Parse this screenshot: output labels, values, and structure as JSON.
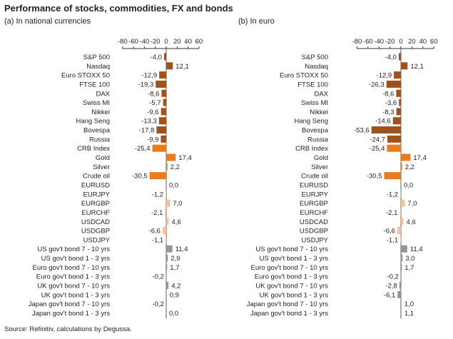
{
  "title": "Performance of stocks, commodities, FX and bonds",
  "source": "Source: Refinitiv, calculations by Degussa.",
  "colors": {
    "stocks": "#a0521b",
    "commodities": "#e87d1e",
    "fx": "#f5c09a",
    "bonds": "#939598",
    "axis": "#333333"
  },
  "chart_data": [
    {
      "type": "bar",
      "orientation": "horizontal",
      "subtitle": "(a) In national currencies",
      "xlim": [
        -80,
        60
      ],
      "ticks": [
        -80,
        -60,
        -40,
        -20,
        0,
        20,
        40,
        60
      ],
      "axis_position": "top",
      "categories": [
        "S&P 500",
        "Nasdaq",
        "Euro STOXX 50",
        "FTSE 100",
        "DAX",
        "Swiss MI",
        "Nikkei",
        "Hang Seng",
        "Bovespa",
        "Russia",
        "CRB Index",
        "Gold",
        "Silver",
        "Crude oil",
        "EURUSD",
        "EURJPY",
        "EURGBP",
        "EURCHF",
        "USDCAD",
        "USDGBP",
        "USDJPY",
        "US gov't bond 7 - 10 yrs",
        "US gov't bond 1 - 3 yrs",
        "Euro gov't bond 7 - 10 yrs",
        "Euro gov't bond 1 - 3 yrs",
        "UK gov't bond 7 - 10 yrs",
        "UK gov't bond 1 - 3 yrs",
        "Japan gov't bond 7 - 10 yrs",
        "Japan gov't bond 1 - 3 yrs"
      ],
      "values": [
        -4.0,
        12.1,
        -12.9,
        -19.3,
        -8.6,
        -5.7,
        -9.6,
        -13.3,
        -17.8,
        -9.9,
        -25.4,
        17.4,
        2.2,
        -30.5,
        0.0,
        -1.2,
        7.0,
        -2.1,
        4.6,
        -6.6,
        -1.1,
        11.4,
        2.9,
        1.7,
        -0.2,
        4.2,
        0.9,
        -0.2,
        0.0
      ],
      "value_labels": [
        "-4,0",
        "12,1",
        "-12,9",
        "-19,3",
        "-8,6",
        "-5,7",
        "-9,6",
        "-13,3",
        "-17,8",
        "-9,9",
        "-25,4",
        "17,4",
        "2,2",
        "-30,5",
        "0,0",
        "-1,2",
        "7,0",
        "-2,1",
        "4,6",
        "-6,6",
        "-1,1",
        "11,4",
        "2,9",
        "1,7",
        "-0,2",
        "4,2",
        "0,9",
        "-0,2",
        "0,0"
      ],
      "groups": [
        "stocks",
        "stocks",
        "stocks",
        "stocks",
        "stocks",
        "stocks",
        "stocks",
        "stocks",
        "stocks",
        "stocks",
        "commodities",
        "commodities",
        "commodities",
        "commodities",
        "fx",
        "fx",
        "fx",
        "fx",
        "fx",
        "fx",
        "fx",
        "bonds",
        "bonds",
        "bonds",
        "bonds",
        "bonds",
        "bonds",
        "bonds",
        "bonds"
      ]
    },
    {
      "type": "bar",
      "orientation": "horizontal",
      "subtitle": "(b) In euro",
      "xlim": [
        -80,
        60
      ],
      "ticks": [
        -80,
        -60,
        -40,
        -20,
        0,
        20,
        40,
        60
      ],
      "axis_position": "top",
      "categories": [
        "S&P 500",
        "Nasdaq",
        "Euro STOXX 50",
        "FTSE 100",
        "DAX",
        "Swiss MI",
        "Nikkei",
        "Hang Seng",
        "Bovespa",
        "Russia",
        "CRB Index",
        "Gold",
        "Silver",
        "Crude oil",
        "EURUSD",
        "EURJPY",
        "EURGBP",
        "EURCHF",
        "USDCAD",
        "USDGBP",
        "USDJPY",
        "US gov't bond 7 - 10 yrs",
        "US gov't bond 1 - 3 yrs",
        "Euro gov't bond 7 - 10 yrs",
        "Euro gov't bond 1 - 3 yrs",
        "UK gov't bond 7 - 10 yrs",
        "UK gov't bond 1 - 3 yrs",
        "Japan gov't bond 7 - 10 yrs",
        "Japan gov't bond 1 - 3 yrs"
      ],
      "values": [
        -4.0,
        12.1,
        -12.9,
        -26.3,
        -8.6,
        -3.6,
        -8.3,
        -14.6,
        -53.6,
        -24.7,
        -25.4,
        17.4,
        2.2,
        -30.5,
        0.0,
        -1.2,
        7.0,
        -2.1,
        4.6,
        -6.6,
        -1.1,
        11.4,
        3.0,
        1.7,
        -0.2,
        -2.8,
        -6.1,
        1.0,
        1.1
      ],
      "value_labels": [
        "-4,0",
        "12,1",
        "-12,9",
        "-26,3",
        "-8,6",
        "-3,6",
        "-8,3",
        "-14,6",
        "-53,6",
        "-24,7",
        "-25,4",
        "17,4",
        "2,2",
        "-30,5",
        "0,0",
        "-1,2",
        "7,0",
        "-2,1",
        "4,6",
        "-6,6",
        "-1,1",
        "11,4",
        "3,0",
        "1,7",
        "-0,2",
        "-2,8",
        "-6,1",
        "1,0",
        "1,1"
      ],
      "groups": [
        "stocks",
        "stocks",
        "stocks",
        "stocks",
        "stocks",
        "stocks",
        "stocks",
        "stocks",
        "stocks",
        "stocks",
        "commodities",
        "commodities",
        "commodities",
        "commodities",
        "fx",
        "fx",
        "fx",
        "fx",
        "fx",
        "fx",
        "fx",
        "bonds",
        "bonds",
        "bonds",
        "bonds",
        "bonds",
        "bonds",
        "bonds",
        "bonds"
      ]
    }
  ]
}
